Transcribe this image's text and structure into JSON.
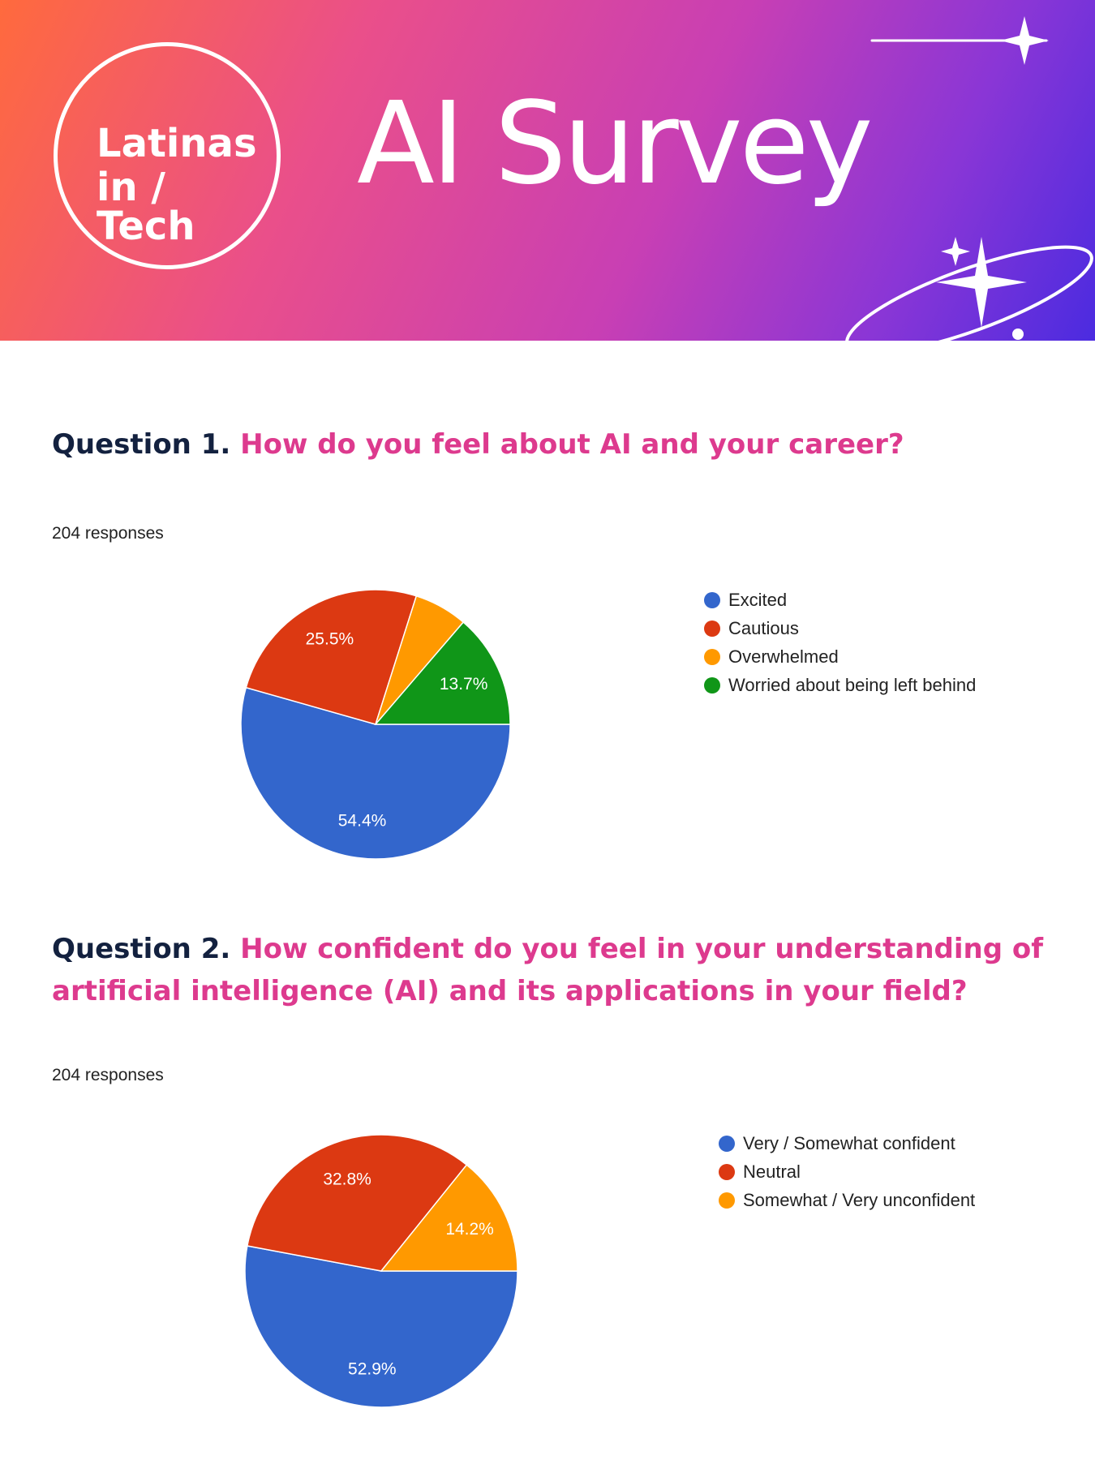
{
  "header": {
    "logo_line1": "Latinas",
    "logo_line2": "in / Tech",
    "title": "AI Survey",
    "gradient_colors": [
      "#ff6a3d",
      "#ea4f8a",
      "#c83fb4",
      "#8a36d6",
      "#4b2be0"
    ]
  },
  "questions": [
    {
      "number": "Question 1.",
      "text": "How do you feel about AI and your career?",
      "responses": "204 responses"
    },
    {
      "number": "Question 2.",
      "text": "How confident do you feel in your understanding of artificial intelligence (AI) and its applications in your field?",
      "responses": "204 responses"
    }
  ],
  "chart_data": [
    {
      "type": "pie",
      "title": "",
      "slices": [
        {
          "label": "Excited",
          "value": 54.4,
          "display": "54.4%",
          "color": "#3366cc"
        },
        {
          "label": "Cautious",
          "value": 25.5,
          "display": "25.5%",
          "color": "#dc3912"
        },
        {
          "label": "Overwhelmed",
          "value": 6.4,
          "display": "",
          "color": "#ff9900"
        },
        {
          "label": "Worried about being left behind",
          "value": 13.7,
          "display": "13.7%",
          "color": "#109618"
        }
      ],
      "legend_placement": "right"
    },
    {
      "type": "pie",
      "title": "",
      "slices": [
        {
          "label": "Very / Somewhat confident",
          "value": 52.9,
          "display": "52.9%",
          "color": "#3366cc"
        },
        {
          "label": "Neutral",
          "value": 32.8,
          "display": "32.8%",
          "color": "#dc3912"
        },
        {
          "label": "Somewhat / Very unconfident",
          "value": 14.2,
          "display": "14.2%",
          "color": "#ff9900"
        }
      ],
      "legend_placement": "right"
    }
  ]
}
